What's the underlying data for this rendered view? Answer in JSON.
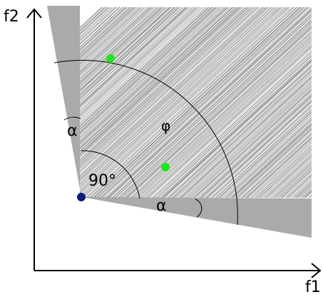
{
  "axes": {
    "x_label": "f1",
    "y_label": "f2"
  },
  "labels": {
    "alpha_left": "α",
    "alpha_bottom": "α",
    "phi": "φ",
    "right_angle": "90°"
  },
  "colors": {
    "cone_fill": "#aaaaaa",
    "hatch": "#8c8c8c",
    "origin_point": "#0a1e78",
    "green_points": "#1ee61e",
    "axis": "#000000"
  },
  "points": {
    "origin": "dark-blue-dot",
    "green": [
      "green-dot",
      "green-dot"
    ]
  }
}
